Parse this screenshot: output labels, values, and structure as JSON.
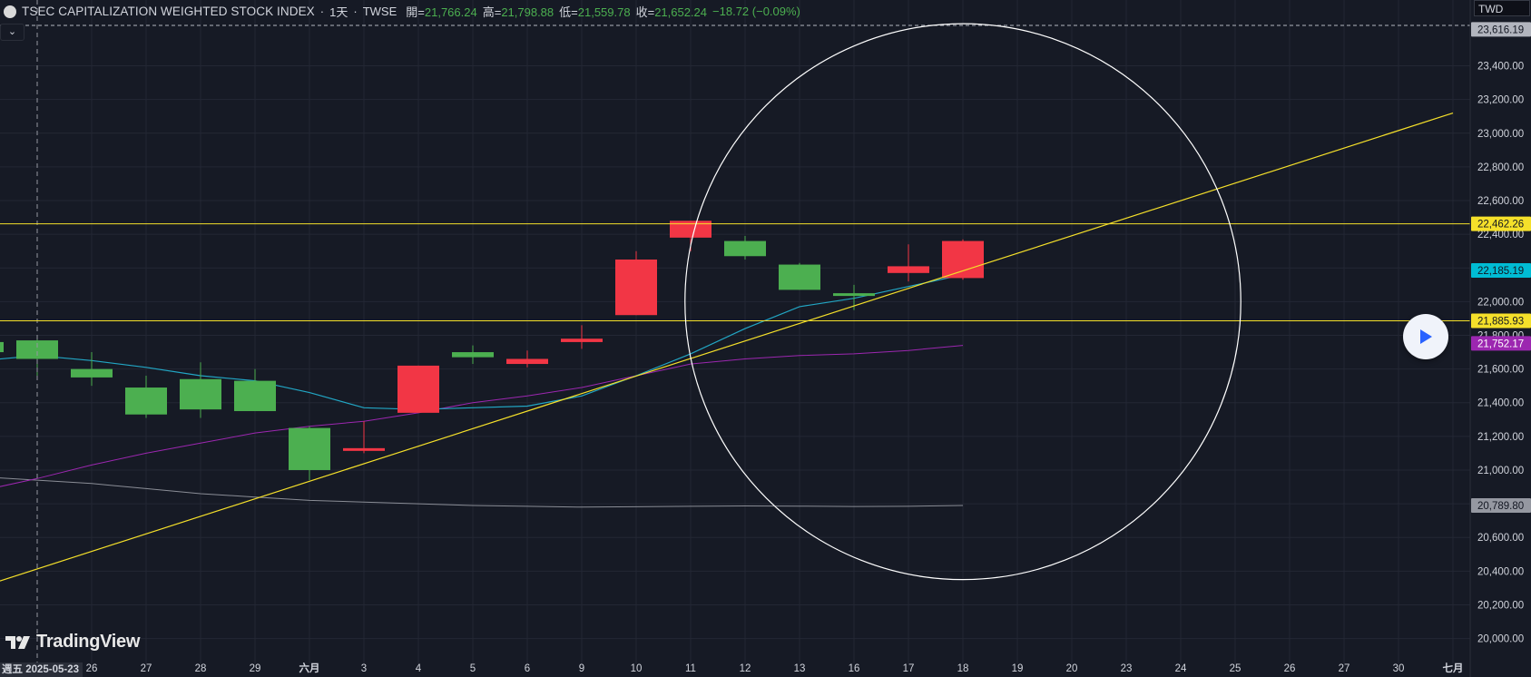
{
  "legend": {
    "name": "TSEC CAPITALIZATION WEIGHTED STOCK INDEX",
    "sep1": "·",
    "interval": "1天",
    "sep2": "·",
    "exchange": "TWSE",
    "open_label": "開=",
    "open": "21,766.24",
    "high_label": "高=",
    "high": "21,798.88",
    "low_label": "低=",
    "low": "21,559.78",
    "close_label": "收=",
    "close": "21,652.24",
    "change": "−18.72 (−0.09%)",
    "collapse_glyph": "⌄"
  },
  "currency": "TWD",
  "logo_text": "TradingView",
  "crosshair_date": "週五 2025-05-23",
  "colors": {
    "background": "#161a25",
    "grid": "#232734",
    "up": "#4caf50",
    "down": "#f23645",
    "ma_cyan": "#22a6c4",
    "ma_purple": "#9c27b0",
    "ma_gray": "#8a8d96",
    "hline": "#f5e02a",
    "trendline": "#f5e02a",
    "circle": "#ffffff",
    "axis_text": "#d1d4dc"
  },
  "chart_data": {
    "type": "candlestick",
    "symbol": "TSEC CAPITALIZATION WEIGHTED STOCK INDEX",
    "interval": "1天",
    "y_range": [
      19960,
      23640
    ],
    "y_ticks": [
      "20,000.00",
      "20,200.00",
      "20,400.00",
      "20,600.00",
      "20,800.00",
      "21,000.00",
      "21,200.00",
      "21,400.00",
      "21,600.00",
      "21,800.00",
      "22,000.00",
      "22,200.00",
      "22,400.00",
      "22,600.00",
      "22,800.00",
      "23,000.00",
      "23,200.00",
      "23,400.00"
    ],
    "x_ticks": [
      "26",
      "27",
      "28",
      "29",
      "六月",
      "3",
      "4",
      "5",
      "6",
      "9",
      "10",
      "11",
      "12",
      "13",
      "16",
      "17",
      "18",
      "19",
      "20",
      "23",
      "24",
      "25",
      "26",
      "27",
      "30",
      "七月"
    ],
    "candles": [
      {
        "idx": -1,
        "open": 21700,
        "high": 21780,
        "low": 21640,
        "close": 21760
      },
      {
        "idx": 0,
        "open": 21660,
        "high": 21790,
        "low": 21560,
        "close": 21770
      },
      {
        "idx": 1,
        "open": 21550,
        "high": 21700,
        "low": 21500,
        "close": 21600
      },
      {
        "idx": 2,
        "open": 21330,
        "high": 21560,
        "low": 21310,
        "close": 21490
      },
      {
        "idx": 3,
        "open": 21360,
        "high": 21640,
        "low": 21310,
        "close": 21540
      },
      {
        "idx": 4,
        "open": 21350,
        "high": 21600,
        "low": 21350,
        "close": 21530
      },
      {
        "idx": 5,
        "open": 21000,
        "high": 21260,
        "low": 20940,
        "close": 21250
      },
      {
        "idx": 6,
        "open": 21130,
        "high": 21290,
        "low": 21100,
        "close": 21120
      },
      {
        "idx": 7,
        "open": 21620,
        "high": 21620,
        "low": 21340,
        "close": 21340
      },
      {
        "idx": 8,
        "open": 21670,
        "high": 21740,
        "low": 21630,
        "close": 21700
      },
      {
        "idx": 9,
        "open": 21660,
        "high": 21710,
        "low": 21610,
        "close": 21630
      },
      {
        "idx": 10,
        "open": 21780,
        "high": 21860,
        "low": 21720,
        "close": 21760
      },
      {
        "idx": 11,
        "open": 22250,
        "high": 22300,
        "low": 21920,
        "close": 21920
      },
      {
        "idx": 12,
        "open": 22480,
        "high": 22480,
        "low": 22300,
        "close": 22380
      },
      {
        "idx": 13,
        "open": 22270,
        "high": 22390,
        "low": 22250,
        "close": 22360
      },
      {
        "idx": 14,
        "open": 22070,
        "high": 22230,
        "low": 22070,
        "close": 22220
      },
      {
        "idx": 15,
        "open": 22040,
        "high": 22100,
        "low": 21950,
        "close": 22050
      },
      {
        "idx": 16,
        "open": 22210,
        "high": 22340,
        "low": 22120,
        "close": 22170
      },
      {
        "idx": 17,
        "open": 22360,
        "high": 22370,
        "low": 22130,
        "close": 22140
      }
    ],
    "ma_short": [
      [
        -1,
        21650
      ],
      [
        0,
        21680
      ],
      [
        1,
        21650
      ],
      [
        2,
        21610
      ],
      [
        3,
        21560
      ],
      [
        4,
        21530
      ],
      [
        5,
        21460
      ],
      [
        6,
        21370
      ],
      [
        7,
        21360
      ],
      [
        8,
        21370
      ],
      [
        9,
        21380
      ],
      [
        10,
        21440
      ],
      [
        11,
        21560
      ],
      [
        12,
        21690
      ],
      [
        13,
        21840
      ],
      [
        14,
        21970
      ],
      [
        15,
        22020
      ],
      [
        16,
        22090
      ],
      [
        17,
        22160
      ]
    ],
    "ma_mid": [
      [
        -1,
        20880
      ],
      [
        0,
        20950
      ],
      [
        1,
        21030
      ],
      [
        2,
        21100
      ],
      [
        3,
        21160
      ],
      [
        4,
        21220
      ],
      [
        5,
        21260
      ],
      [
        6,
        21290
      ],
      [
        7,
        21340
      ],
      [
        8,
        21400
      ],
      [
        9,
        21440
      ],
      [
        10,
        21490
      ],
      [
        11,
        21560
      ],
      [
        12,
        21630
      ],
      [
        13,
        21660
      ],
      [
        14,
        21680
      ],
      [
        15,
        21690
      ],
      [
        16,
        21710
      ],
      [
        17,
        21740
      ]
    ],
    "ma_long": [
      [
        -1,
        20960
      ],
      [
        0,
        20940
      ],
      [
        1,
        20920
      ],
      [
        2,
        20890
      ],
      [
        3,
        20860
      ],
      [
        4,
        20840
      ],
      [
        5,
        20820
      ],
      [
        6,
        20810
      ],
      [
        7,
        20800
      ],
      [
        8,
        20790
      ],
      [
        9,
        20785
      ],
      [
        10,
        20780
      ],
      [
        11,
        20782
      ],
      [
        12,
        20785
      ],
      [
        13,
        20787
      ],
      [
        14,
        20786
      ],
      [
        15,
        20784
      ],
      [
        16,
        20785
      ],
      [
        17,
        20790
      ]
    ],
    "horizontal_lines": [
      22462.26,
      21885.93
    ],
    "trendline": [
      [
        -0.7,
        20340
      ],
      [
        26.0,
        23120
      ]
    ],
    "circle": {
      "center_idx": 17,
      "center_value": 22000,
      "radius_value": 1650
    },
    "price_labels": [
      {
        "text": "23,616.19",
        "value": 23616.19,
        "bg": "#b2b5be",
        "fg": "#131722"
      },
      {
        "text": "22,462.26",
        "value": 22462.26,
        "bg": "#f5e02a",
        "fg": "#131722"
      },
      {
        "text": "22,185.19",
        "value": 22185.19,
        "bg": "#00bcd4",
        "fg": "#131722"
      },
      {
        "text": "21,885.93",
        "value": 21885.93,
        "bg": "#f5e02a",
        "fg": "#131722"
      },
      {
        "text": "21,752.17",
        "value": 21752.17,
        "bg": "#9c27b0",
        "fg": "#ffffff"
      },
      {
        "text": "20,789.80",
        "value": 20789.8,
        "bg": "#9598a1",
        "fg": "#131722"
      }
    ]
  }
}
